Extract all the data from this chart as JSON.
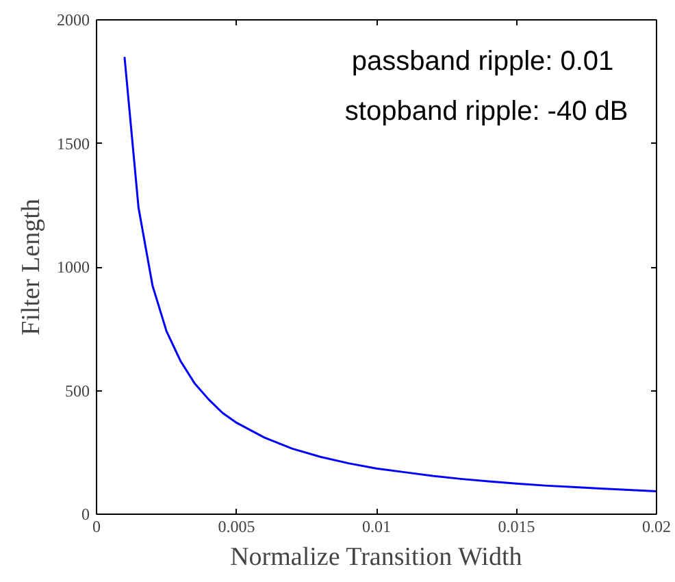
{
  "chart_data": {
    "type": "line",
    "xlabel": "Normalize Transition Width",
    "ylabel": "Filter Length",
    "x": [
      0.001,
      0.0015,
      0.002,
      0.0025,
      0.003,
      0.0035,
      0.004,
      0.0045,
      0.005,
      0.006,
      0.007,
      0.008,
      0.009,
      0.01,
      0.011,
      0.012,
      0.013,
      0.014,
      0.015,
      0.016,
      0.017,
      0.018,
      0.019,
      0.02
    ],
    "series": [
      {
        "color": "#0000ff",
        "values": [
          1850,
          1240,
          925,
          740,
          620,
          530,
          465,
          410,
          370,
          310,
          265,
          232,
          206,
          185,
          170,
          155,
          143,
          133,
          124,
          116,
          110,
          104,
          98,
          93
        ]
      }
    ],
    "xlim": [
      0,
      0.02
    ],
    "ylim": [
      0,
      2000
    ],
    "xticks": [
      0,
      0.005,
      0.01,
      0.015,
      0.02
    ],
    "yticks": [
      0,
      500,
      1000,
      1500,
      2000
    ],
    "annotations": [
      "passband ripple:    0.01",
      "stopband ripple:   -40 dB"
    ],
    "grid": false,
    "marker": "none",
    "line_style": "solid"
  }
}
